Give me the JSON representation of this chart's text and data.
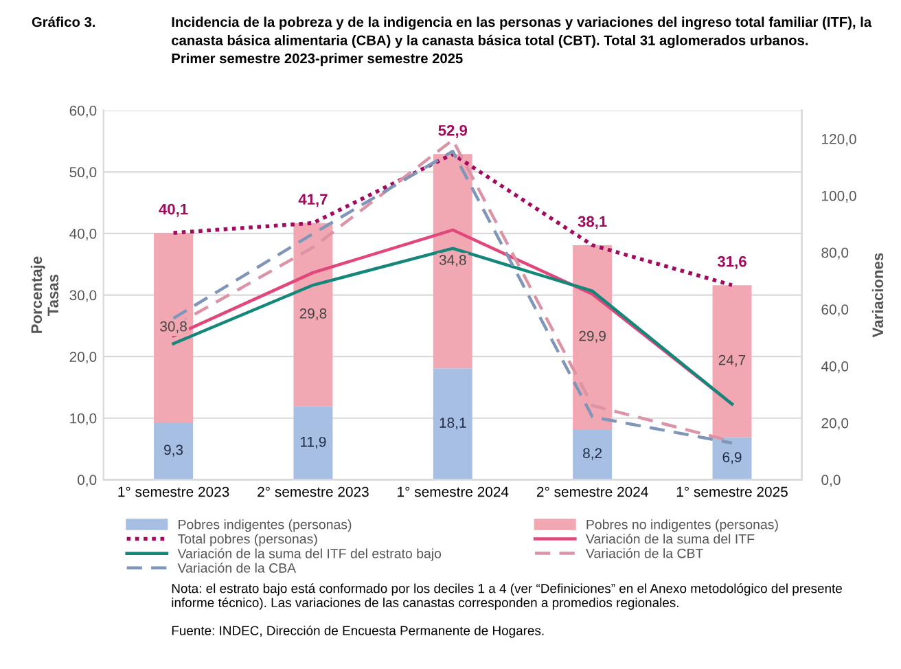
{
  "chart_data": {
    "type": "bar",
    "stacked": true,
    "title": "Incidencia de la pobreza y de la indigencia en las personas y variaciones del ingreso total familiar (ITF), la\ncanasta básica alimentaria (CBA) y la canasta básica total (CBT). Total 31 aglomerados urbanos.\nPrimer semestre 2023-primer semestre 2025",
    "ylabel": "Porcentaje\nTasas",
    "y2label": "Variaciones",
    "categories": [
      "1° semestre 2023",
      "2° semestre 2023",
      "1° semestre 2024",
      "2° semestre 2024",
      "1° semestre 2025"
    ],
    "series": [
      {
        "name": "Pobres indigentes (personas)",
        "color": "#a7bfe3",
        "values": [
          9.3,
          11.9,
          18.1,
          8.2,
          6.9
        ],
        "value_labels": [
          "9,3",
          "11,9",
          "18,1",
          "8,2",
          "6,9"
        ]
      },
      {
        "name": "Pobres no indigentes (personas)",
        "color": "#f2a8b2",
        "values": [
          30.8,
          29.8,
          34.8,
          29.9,
          24.7
        ],
        "value_labels": [
          "30,8",
          "29,8",
          "34,8",
          "29,9",
          "24,7"
        ]
      },
      {
        "name": "Total pobres (personas)",
        "type": "line",
        "line_style": "dotted",
        "color": "#a3095d",
        "values": [
          40.1,
          41.7,
          52.9,
          38.1,
          31.6
        ],
        "value_labels": [
          "40,1",
          "41,7",
          "52,9",
          "38,1",
          "31,6"
        ]
      },
      {
        "name": "Variación de la suma del ITF",
        "type": "line",
        "line_style": "solid",
        "axis": "y2",
        "color": "#e0487c",
        "values": [
          50.6,
          72.9,
          87.9,
          65.3,
          26.6
        ]
      },
      {
        "name": "Variación de la suma del ITF del estrato bajo",
        "type": "line",
        "line_style": "solid",
        "axis": "y2",
        "color": "#14877a",
        "values": [
          47.9,
          68.5,
          81.4,
          66.4,
          26.6
        ]
      },
      {
        "name": "Variación de la CBT",
        "type": "line",
        "line_style": "dashed",
        "axis": "y2",
        "color": "#dc93a5",
        "values": [
          54.0,
          81.8,
          119.6,
          26.1,
          13.5
        ]
      },
      {
        "name": "Variación de la CBA",
        "type": "line",
        "line_style": "dashed",
        "axis": "y2",
        "color": "#8096b8",
        "values": [
          56.8,
          86.6,
          115.6,
          22.1,
          12.9
        ]
      }
    ],
    "ylim": [
      0,
      60
    ],
    "yticks": [
      {
        "value": 0,
        "label": "0,0"
      },
      {
        "value": 10,
        "label": "10,0"
      },
      {
        "value": 20,
        "label": "20,0"
      },
      {
        "value": 30,
        "label": "30,0"
      },
      {
        "value": 40,
        "label": "40,0"
      },
      {
        "value": 50,
        "label": "50,0"
      },
      {
        "value": 60,
        "label": "60,0"
      }
    ],
    "y2lim": [
      0,
      130
    ],
    "y2ticks": [
      {
        "value": 0,
        "label": "0,0"
      },
      {
        "value": 20,
        "label": "20,0"
      },
      {
        "value": 40,
        "label": "40,0"
      },
      {
        "value": 60,
        "label": "60,0"
      },
      {
        "value": 80,
        "label": "80,0"
      },
      {
        "value": 100,
        "label": "100,0"
      },
      {
        "value": 120,
        "label": "120,0"
      }
    ],
    "grid": "y",
    "legend": "bottom",
    "annotations": [
      "Gráfico 3.",
      "Nota: el estrato bajo está conformado por los deciles 1 a 4 (ver “Definiciones” en el Anexo metodológico del presente\ninforme técnico). Las variaciones de las canastas corresponden a promedios regionales.",
      "Fuente: INDEC, Dirección de Encuesta Permanente de Hogares."
    ]
  }
}
